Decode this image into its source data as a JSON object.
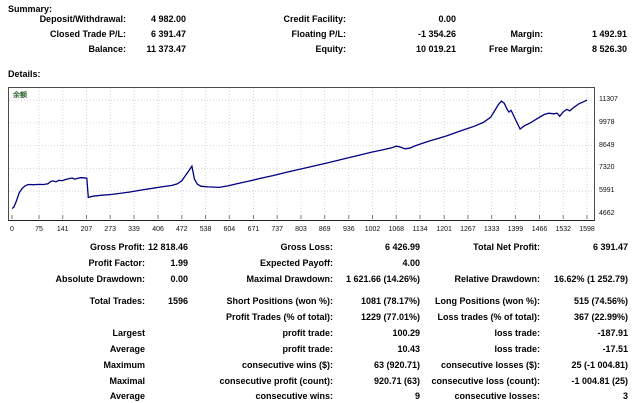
{
  "summary": {
    "heading": "Summary:",
    "rows": [
      {
        "l1": "Deposit/Withdrawal:",
        "v1": "4 982.00",
        "l2": "Credit Facility:",
        "v2": "0.00",
        "l3": "",
        "v3": ""
      },
      {
        "l1": "Closed Trade P/L:",
        "v1": "6 391.47",
        "l2": "Floating P/L:",
        "v2": "-1 354.26",
        "l3": "Margin:",
        "v3": "1 492.91"
      },
      {
        "l1": "Balance:",
        "v1": "11 373.47",
        "l2": "Equity:",
        "v2": "10 019.21",
        "l3": "Free Margin:",
        "v3": "8 526.30"
      }
    ]
  },
  "details": {
    "heading": "Details:",
    "rows": [
      {
        "l1": "Gross Profit:",
        "v1": "12 818.46",
        "l2": "Gross Loss:",
        "v2": "6 426.99",
        "l3": "Total Net Profit:",
        "v3": "6 391.47"
      },
      {
        "l1": "Profit Factor:",
        "v1": "1.99",
        "l2": "Expected Payoff:",
        "v2": "4.00",
        "l3": "",
        "v3": ""
      },
      {
        "l1": "Absolute Drawdown:",
        "v1": "0.00",
        "l2": "Maximal Drawdown:",
        "v2": "1 621.66 (14.26%)",
        "l3": "Relative Drawdown:",
        "v3": "16.62% (1 252.79)"
      },
      {
        "l1": "Total Trades:",
        "v1": "1596",
        "l2": "Short Positions (won %):",
        "v2": "1081 (78.17%)",
        "l3": "Long Positions (won %):",
        "v3": "515 (74.56%)"
      },
      {
        "l1": "",
        "v1": "",
        "l2": "Profit Trades (% of total):",
        "v2": "1229 (77.01%)",
        "l3": "Loss trades (% of total):",
        "v3": "367 (22.99%)"
      },
      {
        "l1": "Largest",
        "v1": "",
        "l2": "profit trade:",
        "v2": "100.29",
        "l3": "loss trade:",
        "v3": "-187.91"
      },
      {
        "l1": "Average",
        "v1": "",
        "l2": "profit trade:",
        "v2": "10.43",
        "l3": "loss trade:",
        "v3": "-17.51"
      },
      {
        "l1": "Maximum",
        "v1": "",
        "l2": "consecutive wins ($):",
        "v2": "63 (920.71)",
        "l3": "consecutive losses ($):",
        "v3": "25 (-1 004.81)"
      },
      {
        "l1": "Maximal",
        "v1": "",
        "l2": "consecutive profit (count):",
        "v2": "920.71 (63)",
        "l3": "consecutive loss (count):",
        "v3": "-1 004.81 (25)"
      },
      {
        "l1": "Average",
        "v1": "",
        "l2": "consecutive wins:",
        "v2": "9",
        "l3": "consecutive losses:",
        "v3": "3"
      }
    ]
  },
  "chart_data": {
    "type": "line",
    "title": "",
    "legend_label": "余额",
    "xlabel": "",
    "ylabel": "",
    "x_axis_range": [
      0,
      1620
    ],
    "y_axis_range": [
      4662,
      11307
    ],
    "x_ticks": [
      0,
      75,
      141,
      207,
      273,
      339,
      406,
      472,
      538,
      604,
      671,
      737,
      803,
      869,
      936,
      1002,
      1068,
      1134,
      1201,
      1267,
      1333,
      1399,
      1466,
      1532,
      1598
    ],
    "y_ticks": [
      4662,
      5991,
      7320,
      8649,
      9978,
      11307
    ],
    "grid": "dotted",
    "line_color": "#000080",
    "grid_color": "#d6d6de",
    "legend_position": "top-left",
    "points": [
      [
        0,
        4982
      ],
      [
        5,
        5050
      ],
      [
        12,
        5400
      ],
      [
        20,
        5900
      ],
      [
        28,
        6150
      ],
      [
        36,
        6300
      ],
      [
        45,
        6380
      ],
      [
        60,
        6370
      ],
      [
        75,
        6390
      ],
      [
        88,
        6380
      ],
      [
        100,
        6420
      ],
      [
        108,
        6560
      ],
      [
        115,
        6590
      ],
      [
        122,
        6540
      ],
      [
        130,
        6620
      ],
      [
        140,
        6610
      ],
      [
        150,
        6680
      ],
      [
        160,
        6730
      ],
      [
        168,
        6760
      ],
      [
        174,
        6690
      ],
      [
        182,
        6740
      ],
      [
        190,
        6780
      ],
      [
        200,
        6770
      ],
      [
        208,
        6750
      ],
      [
        212,
        5630
      ],
      [
        225,
        5700
      ],
      [
        250,
        5760
      ],
      [
        275,
        5800
      ],
      [
        300,
        5860
      ],
      [
        330,
        5950
      ],
      [
        360,
        6060
      ],
      [
        390,
        6160
      ],
      [
        420,
        6260
      ],
      [
        445,
        6330
      ],
      [
        460,
        6420
      ],
      [
        472,
        6600
      ],
      [
        482,
        6900
      ],
      [
        492,
        7200
      ],
      [
        500,
        7450
      ],
      [
        507,
        6700
      ],
      [
        515,
        6400
      ],
      [
        525,
        6280
      ],
      [
        545,
        6240
      ],
      [
        575,
        6212
      ],
      [
        600,
        6300
      ],
      [
        625,
        6420
      ],
      [
        655,
        6560
      ],
      [
        690,
        6740
      ],
      [
        725,
        6900
      ],
      [
        760,
        7080
      ],
      [
        795,
        7250
      ],
      [
        830,
        7420
      ],
      [
        865,
        7580
      ],
      [
        900,
        7760
      ],
      [
        935,
        7940
      ],
      [
        970,
        8120
      ],
      [
        1000,
        8270
      ],
      [
        1030,
        8400
      ],
      [
        1055,
        8520
      ],
      [
        1068,
        8620
      ],
      [
        1080,
        8560
      ],
      [
        1092,
        8460
      ],
      [
        1105,
        8500
      ],
      [
        1120,
        8630
      ],
      [
        1140,
        8780
      ],
      [
        1160,
        8920
      ],
      [
        1185,
        9070
      ],
      [
        1210,
        9230
      ],
      [
        1235,
        9420
      ],
      [
        1260,
        9600
      ],
      [
        1285,
        9780
      ],
      [
        1310,
        10000
      ],
      [
        1330,
        10300
      ],
      [
        1342,
        10700
      ],
      [
        1352,
        11050
      ],
      [
        1360,
        11240
      ],
      [
        1368,
        11120
      ],
      [
        1375,
        10800
      ],
      [
        1381,
        10600
      ],
      [
        1387,
        10700
      ],
      [
        1394,
        10400
      ],
      [
        1402,
        10050
      ],
      [
        1412,
        9618
      ],
      [
        1425,
        9820
      ],
      [
        1440,
        9960
      ],
      [
        1455,
        10160
      ],
      [
        1468,
        10330
      ],
      [
        1480,
        10470
      ],
      [
        1492,
        10540
      ],
      [
        1505,
        10500
      ],
      [
        1515,
        10540
      ],
      [
        1522,
        10360
      ],
      [
        1532,
        10620
      ],
      [
        1542,
        10760
      ],
      [
        1550,
        10680
      ],
      [
        1562,
        10880
      ],
      [
        1575,
        11080
      ],
      [
        1588,
        11200
      ],
      [
        1598,
        11300
      ]
    ]
  }
}
